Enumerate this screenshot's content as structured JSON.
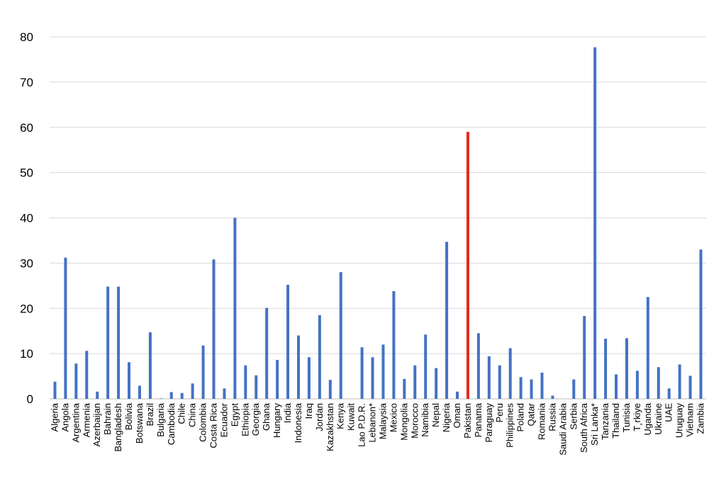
{
  "chart_data": {
    "type": "bar",
    "title": "",
    "xlabel": "",
    "ylabel": "",
    "ylim": [
      0,
      80
    ],
    "yticks": [
      0,
      10,
      20,
      30,
      40,
      50,
      60,
      70,
      80
    ],
    "grid": true,
    "legend": "none",
    "bar_color": "#4472c4",
    "highlight_color": "#e8271b",
    "highlight_category": "Pakistan",
    "categories": [
      "Algeria",
      "Angola",
      "Argentina",
      "Armenia",
      "Azerbaijan",
      "Bahrain",
      "Bangladesh",
      "Bolivia",
      "Botswana",
      "Brazil",
      "Bulgaria",
      "Cambodia",
      "Chile",
      "China",
      "Colombia",
      "Costa Rica",
      "Ecuador",
      "Egypt",
      "Ethiopia",
      "Georgia",
      "Ghana",
      "Hungary",
      "India",
      "Indonesia",
      "Iraq",
      "Jordan",
      "Kazakhstan",
      "Kenya",
      "Kuwait",
      "Lao P.D.R.",
      "Lebanon*",
      "Malaysia",
      "Mexico",
      "Mongolia",
      "Morocco",
      "Namibia",
      "Nepal",
      "Nigeria",
      "Oman",
      "Pakistan",
      "Panama",
      "Paraguay",
      "Peru",
      "Philippines",
      "Poland",
      "Qatar",
      "Romania",
      "Russia",
      "Saudi Arabia",
      "Serbia",
      "South Africa",
      "Sri Lanka*",
      "Tanzania",
      "Thailand",
      "Tunisia",
      "T¸rkiye",
      "Uganda",
      "Ukraine",
      "UAE",
      "Uruguay",
      "Vietnam",
      "Zambia"
    ],
    "values": [
      3.8,
      31.2,
      7.8,
      10.6,
      1.6,
      24.8,
      24.8,
      8.1,
      2.9,
      14.7,
      0.1,
      1.5,
      1.3,
      3.4,
      11.8,
      30.8,
      2.3,
      40.0,
      7.4,
      5.2,
      20.1,
      8.6,
      25.2,
      14.0,
      9.2,
      18.5,
      4.2,
      28.0,
      0.0,
      11.4,
      9.2,
      12.0,
      23.8,
      4.4,
      7.4,
      14.2,
      6.8,
      34.7,
      1.6,
      59.0,
      14.5,
      9.4,
      7.4,
      11.2,
      4.8,
      4.3,
      5.8,
      0.7,
      0.0,
      4.3,
      18.3,
      77.7,
      13.3,
      5.4,
      13.4,
      6.2,
      22.5,
      7.0,
      2.3,
      7.6,
      5.1,
      33.0
    ]
  }
}
